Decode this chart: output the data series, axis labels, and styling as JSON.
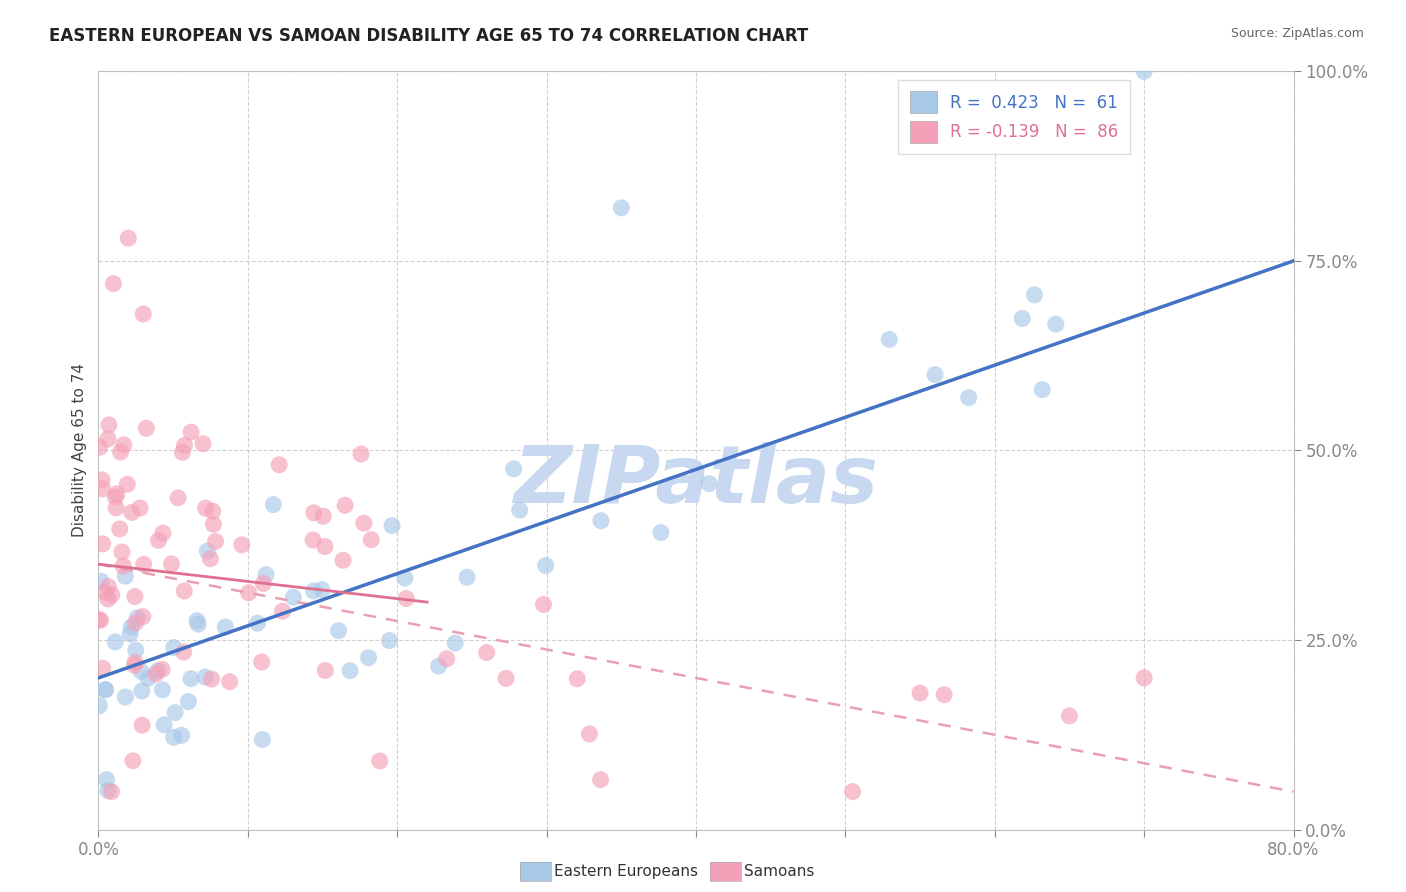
{
  "title": "EASTERN EUROPEAN VS SAMOAN DISABILITY AGE 65 TO 74 CORRELATION CHART",
  "source": "Source: ZipAtlas.com",
  "ylabel": "Disability Age 65 to 74",
  "xmin": 0.0,
  "xmax": 80.0,
  "ymin": 0.0,
  "ymax": 100.0,
  "yticks": [
    0,
    25,
    50,
    75,
    100
  ],
  "ytick_labels": [
    "0.0%",
    "25.0%",
    "50.0%",
    "75.0%",
    "100.0%"
  ],
  "xticks": [
    0,
    10,
    20,
    30,
    40,
    50,
    60,
    70,
    80
  ],
  "xtick_labels": [
    "0.0%",
    "",
    "",
    "",
    "",
    "",
    "",
    "",
    "80.0%"
  ],
  "legend_R_blue": "R =  0.423",
  "legend_N_blue": "N =  61",
  "legend_R_pink": "R = -0.139",
  "legend_N_pink": "N =  86",
  "blue_color": "#a8c8e8",
  "pink_color": "#f4a0b8",
  "trend_blue_color": "#4472c4",
  "trend_pink_solid_color": "#e07090",
  "trend_pink_dash_color": "#e8a0b0",
  "watermark": "ZIPatlas",
  "watermark_color": "#c8d8f0",
  "label_eastern": "Eastern Europeans",
  "label_samoans": "Samoans",
  "blue_trend_x0": 0,
  "blue_trend_y0": 20,
  "blue_trend_x1": 80,
  "blue_trend_y1": 75,
  "pink_solid_x0": 0,
  "pink_solid_y0": 35,
  "pink_solid_x1": 22,
  "pink_solid_y1": 30,
  "pink_dash_x0": 0,
  "pink_dash_y0": 35,
  "pink_dash_x1": 80,
  "pink_dash_y1": 5,
  "grid_color": "#cccccc",
  "grid_style": "--"
}
